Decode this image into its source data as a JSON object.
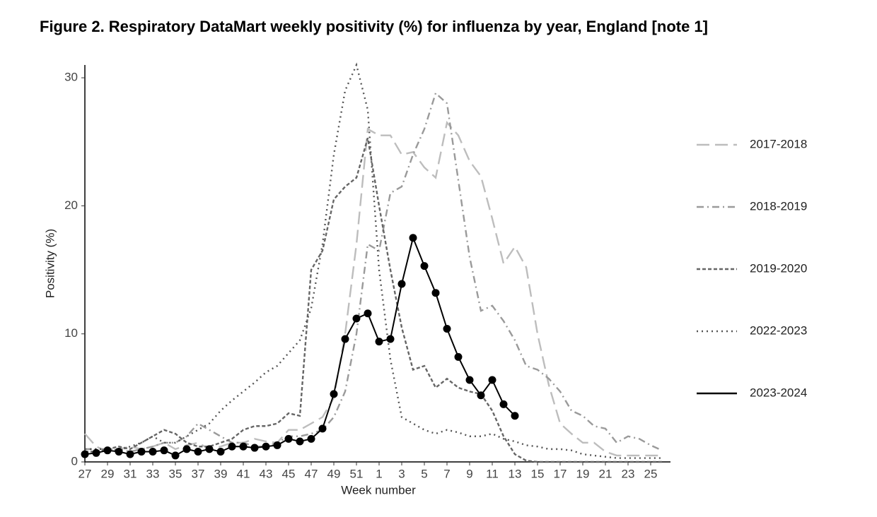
{
  "chart_data": {
    "type": "line",
    "title": "Figure 2. Respiratory DataMart weekly positivity (%) for influenza by year, England [note 1]",
    "x_label": "Week number",
    "y_label": "Positivity (%)",
    "categories": [
      "27",
      null,
      "29",
      null,
      "31",
      null,
      "33",
      null,
      "35",
      null,
      "37",
      null,
      "39",
      null,
      "41",
      null,
      "43",
      null,
      "45",
      null,
      "47",
      null,
      "49",
      null,
      "51",
      null,
      "1",
      null,
      "3",
      null,
      "5",
      null,
      "7",
      null,
      "9",
      null,
      "11",
      null,
      "13",
      null,
      "15",
      null,
      "17",
      null,
      "19",
      null,
      "21",
      null,
      "23",
      null,
      "25",
      null
    ],
    "ylim": [
      0,
      31
    ],
    "yticks": [
      0,
      10,
      20,
      30
    ],
    "grid": false,
    "legend": "right",
    "series": [
      {
        "name": "2017-2018",
        "color": "#bdbdbd",
        "dash": "18,8",
        "markers": false,
        "values": [
          2.2,
          1.2,
          0.8,
          1.0,
          1.2,
          1.0,
          1.2,
          1.5,
          1.0,
          1.3,
          1.5,
          1.0,
          1.2,
          1.5,
          1.5,
          1.8,
          1.6,
          1.5,
          2.5,
          2.5,
          3.0,
          3.5,
          5.0,
          10,
          17,
          26,
          25.5,
          25.5,
          24,
          24.2,
          23,
          22.2,
          26.5,
          25.5,
          23.5,
          22.3,
          19,
          15.5,
          16.8,
          15.2,
          10,
          6,
          3,
          2.2,
          1.5,
          1.5,
          0.8,
          0.5,
          0.5,
          0.5,
          0.5,
          0.5
        ]
      },
      {
        "name": "2018-2019",
        "color": "#9a9a9a",
        "dash": "10,5,2,5",
        "markers": false,
        "values": [
          1.0,
          1.0,
          1.0,
          1.0,
          0.8,
          1.0,
          1.2,
          1.5,
          1.5,
          2.0,
          3.0,
          2.5,
          2.0,
          1.5,
          1.5,
          1.2,
          1.2,
          1.5,
          2.0,
          2.0,
          2.2,
          2.5,
          3.5,
          5.5,
          10,
          17,
          16.5,
          21,
          21.5,
          24,
          26,
          28.8,
          28,
          22,
          16,
          11.8,
          12.2,
          11,
          9.5,
          7.5,
          7.2,
          6.5,
          5.5,
          4,
          3.6,
          2.8,
          2.6,
          1.5,
          2.0,
          1.8,
          1.3,
          0.9
        ]
      },
      {
        "name": "2019-2020",
        "color": "#666666",
        "dash": "5,3",
        "markers": false,
        "values": [
          0.8,
          0.8,
          1.0,
          1.2,
          1.0,
          1.5,
          2.0,
          2.5,
          2.2,
          1.5,
          1.2,
          1.2,
          1.5,
          1.8,
          2.5,
          2.8,
          2.8,
          3.0,
          3.8,
          3.6,
          15,
          16.5,
          20.5,
          21.5,
          22.2,
          25.3,
          20,
          15,
          10.5,
          7.2,
          7.5,
          5.8,
          6.5,
          5.8,
          5.5,
          5.3,
          4.0,
          2.0,
          0.6,
          0.1,
          0,
          0,
          0,
          0,
          0,
          0,
          0,
          0,
          0,
          0,
          0,
          0
        ]
      },
      {
        "name": "2022-2023",
        "color": "#555555",
        "dash": "2,5",
        "markers": false,
        "values": [
          1.0,
          1.0,
          1.0,
          0.9,
          1.2,
          1.5,
          2.0,
          1.5,
          1.5,
          2.0,
          2.5,
          3.0,
          4.0,
          4.8,
          5.5,
          6.2,
          7.0,
          7.5,
          8.5,
          9.5,
          12,
          17,
          24,
          29,
          31,
          27.5,
          15,
          8,
          3.5,
          3,
          2.5,
          2.2,
          2.5,
          2.3,
          2.0,
          2.0,
          2.2,
          1.8,
          1.6,
          1.3,
          1.2,
          1.0,
          1.0,
          0.9,
          0.6,
          0.5,
          0.4,
          0.3,
          0.3,
          0.3,
          0.3,
          0.3
        ]
      },
      {
        "name": "2023-2024",
        "color": "#000000",
        "dash": "none",
        "markers": true,
        "values": [
          0.6,
          0.7,
          0.9,
          0.8,
          0.6,
          0.8,
          0.8,
          0.9,
          0.5,
          1.0,
          0.8,
          1.0,
          0.8,
          1.2,
          1.2,
          1.1,
          1.2,
          1.3,
          1.8,
          1.6,
          1.8,
          2.6,
          5.3,
          9.6,
          11.2,
          11.6,
          9.4,
          9.6,
          13.9,
          17.5,
          15.3,
          13.2,
          10.4,
          8.2,
          6.4,
          5.2,
          6.4,
          4.5,
          3.6,
          null,
          null,
          null,
          null,
          null,
          null,
          null,
          null,
          null,
          null,
          null,
          null,
          null
        ]
      }
    ]
  }
}
